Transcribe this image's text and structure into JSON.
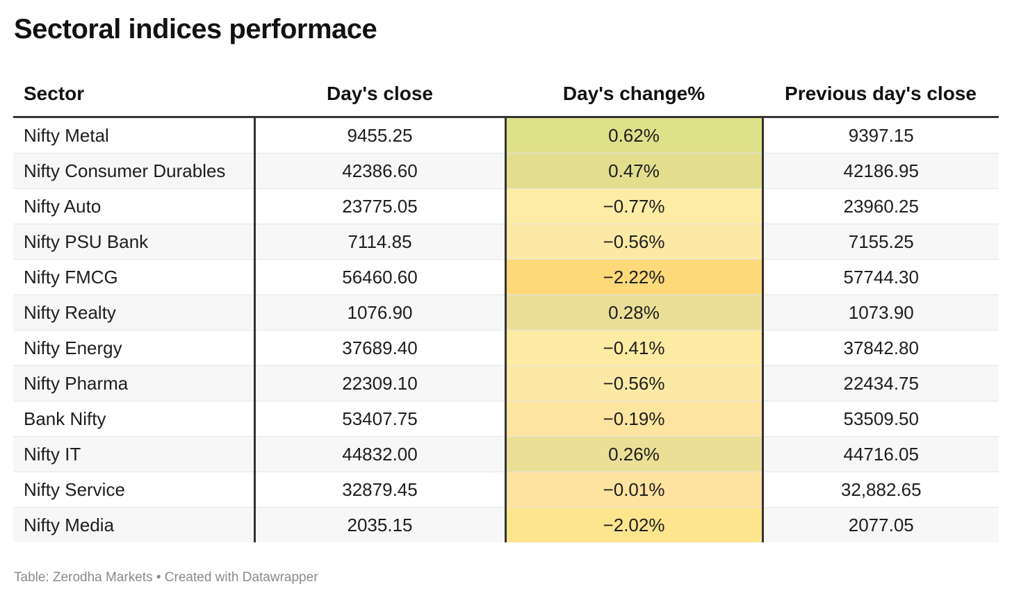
{
  "title": "Sectoral indices performace",
  "footer": "Table: Zerodha Markets • Created with Datawrapper",
  "chart_data": {
    "type": "table",
    "title": "Sectoral indices performace",
    "columns": [
      "Sector",
      "Day's close",
      "Day's change%",
      "Previous day's close"
    ],
    "rows": [
      {
        "sector": "Nifty Metal",
        "close": "9455.25",
        "change": "0.62%",
        "change_value": 0.62,
        "prev_close": "9397.15",
        "heat_color": "#dfe08a"
      },
      {
        "sector": "Nifty Consumer Durables",
        "close": "42386.60",
        "change": "0.47%",
        "change_value": 0.47,
        "prev_close": "42186.95",
        "heat_color": "#e2de8e"
      },
      {
        "sector": "Nifty Auto",
        "close": "23775.05",
        "change": "−0.77%",
        "change_value": -0.77,
        "prev_close": "23960.25",
        "heat_color": "#fdeca5"
      },
      {
        "sector": "Nifty PSU Bank",
        "close": "7114.85",
        "change": "−0.56%",
        "change_value": -0.56,
        "prev_close": "7155.25",
        "heat_color": "#fbe9a5"
      },
      {
        "sector": "Nifty FMCG",
        "close": "56460.60",
        "change": "−2.22%",
        "change_value": -2.22,
        "prev_close": "57744.30",
        "heat_color": "#fed97a"
      },
      {
        "sector": "Nifty Realty",
        "close": "1076.90",
        "change": "0.28%",
        "change_value": 0.28,
        "prev_close": "1073.90",
        "heat_color": "#ebdf97"
      },
      {
        "sector": "Nifty Energy",
        "close": "37689.40",
        "change": "−0.41%",
        "change_value": -0.41,
        "prev_close": "37842.80",
        "heat_color": "#fdeaa3"
      },
      {
        "sector": "Nifty Pharma",
        "close": "22309.10",
        "change": "−0.56%",
        "change_value": -0.56,
        "prev_close": "22434.75",
        "heat_color": "#fbe9a5"
      },
      {
        "sector": "Bank Nifty",
        "close": "53407.75",
        "change": "−0.19%",
        "change_value": -0.19,
        "prev_close": "53509.50",
        "heat_color": "#fde4a0"
      },
      {
        "sector": "Nifty IT",
        "close": "44832.00",
        "change": "0.26%",
        "change_value": 0.26,
        "prev_close": "44716.05",
        "heat_color": "#ebdf97"
      },
      {
        "sector": "Nifty Service",
        "close": "32879.45",
        "change": "−0.01%",
        "change_value": -0.01,
        "prev_close": "32,882.65",
        "heat_color": "#fde2a0"
      },
      {
        "sector": "Nifty Media",
        "close": "2035.15",
        "change": "−2.02%",
        "change_value": -2.02,
        "prev_close": "2077.05",
        "heat_color": "#fde58d"
      }
    ]
  }
}
